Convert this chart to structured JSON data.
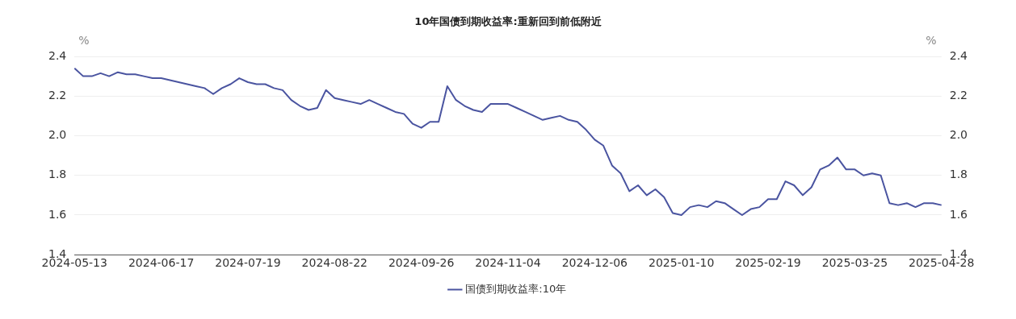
{
  "chart_data": {
    "type": "line",
    "title": "10年国债到期收益率:重新回到前低附近",
    "ylabel": "%",
    "y2label": "%",
    "categories": [
      "2024-05-13",
      null,
      null,
      null,
      null,
      null,
      null,
      null,
      null,
      null,
      "2024-06-17",
      null,
      null,
      null,
      null,
      null,
      null,
      null,
      null,
      null,
      "2024-07-19",
      null,
      null,
      null,
      null,
      null,
      null,
      null,
      null,
      null,
      "2024-08-22",
      null,
      null,
      null,
      null,
      null,
      null,
      null,
      null,
      null,
      "2024-09-26",
      null,
      null,
      null,
      null,
      null,
      null,
      null,
      null,
      null,
      "2024-11-04",
      null,
      null,
      null,
      null,
      null,
      null,
      null,
      null,
      null,
      "2024-12-06",
      null,
      null,
      null,
      null,
      null,
      null,
      null,
      null,
      null,
      "2025-01-10",
      null,
      null,
      null,
      null,
      null,
      null,
      null,
      null,
      null,
      "2025-02-19",
      null,
      null,
      null,
      null,
      null,
      null,
      null,
      null,
      null,
      "2025-03-25",
      null,
      null,
      null,
      null,
      null,
      null,
      null,
      null,
      null,
      "2025-04-28"
    ],
    "series": [
      {
        "name": "国债到期收益率:10年",
        "color": "#4a54a0",
        "values": [
          2.34,
          2.3,
          2.3,
          2.315,
          2.3,
          2.32,
          2.31,
          2.31,
          2.3,
          2.29,
          2.29,
          2.28,
          2.27,
          2.26,
          2.25,
          2.24,
          2.21,
          2.24,
          2.26,
          2.29,
          2.27,
          2.26,
          2.26,
          2.24,
          2.23,
          2.18,
          2.15,
          2.13,
          2.14,
          2.23,
          2.19,
          2.18,
          2.17,
          2.16,
          2.18,
          2.16,
          2.14,
          2.12,
          2.11,
          2.06,
          2.04,
          2.07,
          2.07,
          2.25,
          2.18,
          2.15,
          2.13,
          2.12,
          2.16,
          2.16,
          2.16,
          2.14,
          2.12,
          2.1,
          2.08,
          2.09,
          2.1,
          2.08,
          2.07,
          2.03,
          1.98,
          1.95,
          1.85,
          1.81,
          1.72,
          1.75,
          1.7,
          1.73,
          1.69,
          1.61,
          1.6,
          1.64,
          1.65,
          1.64,
          1.67,
          1.66,
          1.63,
          1.6,
          1.63,
          1.64,
          1.68,
          1.68,
          1.77,
          1.75,
          1.7,
          1.74,
          1.83,
          1.85,
          1.89,
          1.83,
          1.83,
          1.8,
          1.81,
          1.8,
          1.66,
          1.65,
          1.66,
          1.64,
          1.66,
          1.66,
          1.65
        ]
      }
    ],
    "ylim": [
      1.4,
      2.4
    ],
    "yticks": [
      1.4,
      1.6,
      1.8,
      {
        "value": 2,
        "label": "2.0"
      },
      2.2,
      2.4
    ],
    "y2lim": [
      1.4,
      2.4
    ],
    "y2ticks": [
      1.4,
      1.6,
      1.8,
      {
        "value": 2,
        "label": "2.0"
      },
      2.2,
      2.4
    ],
    "grid": "y",
    "legend": "bottom",
    "marker": "none",
    "line_style": "solid"
  }
}
